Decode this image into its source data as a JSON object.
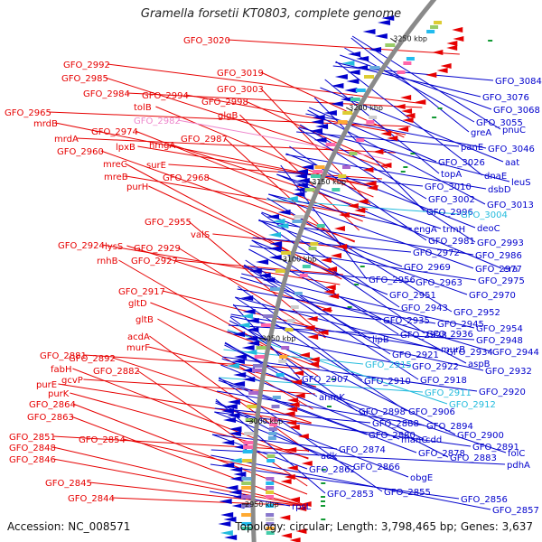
{
  "title": "Gramella forsetii KT0803, complete genome",
  "accession": "Accession: NC_008571",
  "stats": "Topology: circular; Length: 3,798,465 bp; Genes: 3,637",
  "colors": {
    "forward": "#e60000",
    "reverse": "#0000cc",
    "highlight_fwd": "#ee88cc",
    "highlight_rev": "#22bbdd",
    "backbone": "#8a8a8a"
  },
  "ticks": [
    {
      "label": "3250 kbp"
    },
    {
      "label": "3200 kbp"
    },
    {
      "label": "3150 kbp"
    },
    {
      "label": "3100 kbp"
    },
    {
      "label": "3050 kbp"
    },
    {
      "label": "3000 kbp"
    },
    {
      "label": "2950 kbp"
    }
  ],
  "left_labels": [
    {
      "text": "GFO_3020"
    },
    {
      "text": "GFO_2992"
    },
    {
      "text": "GFO_3019"
    },
    {
      "text": "GFO_2985"
    },
    {
      "text": "GFO_3003"
    },
    {
      "text": "GFO_2984"
    },
    {
      "text": "GFO_2994"
    },
    {
      "text": "GFO_2998"
    },
    {
      "text": "tolB"
    },
    {
      "text": "glgB"
    },
    {
      "text": "GFO_2965"
    },
    {
      "text": "GFO_2982"
    },
    {
      "text": "mrdB"
    },
    {
      "text": "GFO_2974"
    },
    {
      "text": "GFO_2987"
    },
    {
      "text": "mrdA"
    },
    {
      "text": "lpxB"
    },
    {
      "text": "hmgA"
    },
    {
      "text": "GFO_2960"
    },
    {
      "text": "mreC"
    },
    {
      "text": "surE"
    },
    {
      "text": "mreB"
    },
    {
      "text": "GFO_2968"
    },
    {
      "text": "purH"
    },
    {
      "text": "GFO_2955"
    },
    {
      "text": "valS"
    },
    {
      "text": "GFO_2924"
    },
    {
      "text": "lysS"
    },
    {
      "text": "GFO_2929"
    },
    {
      "text": "rnhB"
    },
    {
      "text": "GFO_2927"
    },
    {
      "text": "GFO_2917"
    },
    {
      "text": "gltD"
    },
    {
      "text": "gltB"
    },
    {
      "text": "acdA"
    },
    {
      "text": "GFO_2881"
    },
    {
      "text": "murF"
    },
    {
      "text": "GFO_2892"
    },
    {
      "text": "fabH"
    },
    {
      "text": "GFO_2882"
    },
    {
      "text": "gcvP"
    },
    {
      "text": "purE"
    },
    {
      "text": "purK"
    },
    {
      "text": "GFO_2864"
    },
    {
      "text": "GFO_2863"
    },
    {
      "text": "GFO_2851"
    },
    {
      "text": "GFO_2854"
    },
    {
      "text": "GFO_2848"
    },
    {
      "text": "GFO_2846"
    },
    {
      "text": "GFO_2845"
    },
    {
      "text": "GFO_2844"
    }
  ],
  "right_labels": [
    {
      "text": "GFO_3084"
    },
    {
      "text": "GFO_3076"
    },
    {
      "text": "GFO_3068"
    },
    {
      "text": "GFO_3055"
    },
    {
      "text": "greA"
    },
    {
      "text": "pnuC"
    },
    {
      "text": "panE"
    },
    {
      "text": "GFO_3046"
    },
    {
      "text": "GFO_3026"
    },
    {
      "text": "aat"
    },
    {
      "text": "topA"
    },
    {
      "text": "dnaE"
    },
    {
      "text": "GFO_3010"
    },
    {
      "text": "dsbD"
    },
    {
      "text": "leuS"
    },
    {
      "text": "GFO_3002"
    },
    {
      "text": "GFO_3013"
    },
    {
      "text": "GFO_2996"
    },
    {
      "text": "GFO_3004"
    },
    {
      "text": "engA"
    },
    {
      "text": "trmH"
    },
    {
      "text": "deoC"
    },
    {
      "text": "GFO_2981"
    },
    {
      "text": "GFO_2993"
    },
    {
      "text": "GFO_2972"
    },
    {
      "text": "GFO_2986"
    },
    {
      "text": "GFO_2969"
    },
    {
      "text": "GFO_2977"
    },
    {
      "text": "era"
    },
    {
      "text": "GFO_2956"
    },
    {
      "text": "GFO_2963"
    },
    {
      "text": "GFO_2975"
    },
    {
      "text": "GFO_2951"
    },
    {
      "text": "GFO_2970"
    },
    {
      "text": "GFO_2943"
    },
    {
      "text": "GFO_2952"
    },
    {
      "text": "GFO_2935"
    },
    {
      "text": "GFO_2945"
    },
    {
      "text": "GFO_2954"
    },
    {
      "text": "lipB"
    },
    {
      "text": "GFO_2928"
    },
    {
      "text": "GFO_2936"
    },
    {
      "text": "GFO_2948"
    },
    {
      "text": "murB"
    },
    {
      "text": "GFO_2934"
    },
    {
      "text": "GFO_2944"
    },
    {
      "text": "GFO_2921"
    },
    {
      "text": "aspB"
    },
    {
      "text": "GFO_2915"
    },
    {
      "text": "GFO_2922"
    },
    {
      "text": "GFO_2932"
    },
    {
      "text": "GFO_2907"
    },
    {
      "text": "GFO_2910"
    },
    {
      "text": "GFO_2918"
    },
    {
      "text": "GFO_2911"
    },
    {
      "text": "GFO_2920"
    },
    {
      "text": "anmK"
    },
    {
      "text": "GFO_2912"
    },
    {
      "text": "GFO_2898"
    },
    {
      "text": "GFO_2906"
    },
    {
      "text": "GFO_2888"
    },
    {
      "text": "GFO_2894"
    },
    {
      "text": "GFO_2880"
    },
    {
      "text": "manC"
    },
    {
      "text": "cdd"
    },
    {
      "text": "GFO_2900"
    },
    {
      "text": "GFO_2874"
    },
    {
      "text": "GFO_2891"
    },
    {
      "text": "adk"
    },
    {
      "text": "GFO_2878"
    },
    {
      "text": "folC"
    },
    {
      "text": "GFO_2883"
    },
    {
      "text": "pdhA"
    },
    {
      "text": "GFO_2862"
    },
    {
      "text": "GFO_2866"
    },
    {
      "text": "obgE"
    },
    {
      "text": "GFO_2853"
    },
    {
      "text": "GFO_2855"
    },
    {
      "text": "rpsL"
    },
    {
      "text": "GFO_2856"
    },
    {
      "text": "GFO_2857"
    }
  ]
}
